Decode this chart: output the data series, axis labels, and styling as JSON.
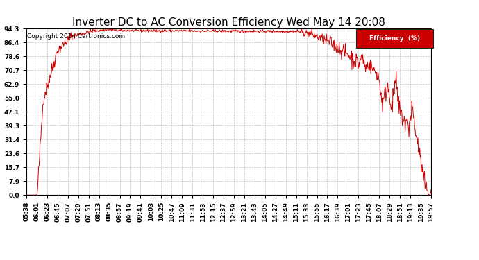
{
  "title": "Inverter DC to AC Conversion Efficiency Wed May 14 20:08",
  "copyright": "Copyright 2014 Cartronics.com",
  "legend_label": "Efficiency  (%)",
  "legend_bg": "#cc0000",
  "legend_text_color": "#ffffff",
  "line_color": "#cc0000",
  "bg_color": "#ffffff",
  "plot_bg_color": "#ffffff",
  "grid_color": "#aaaaaa",
  "yticks": [
    0.0,
    7.9,
    15.7,
    23.6,
    31.4,
    39.3,
    47.1,
    55.0,
    62.9,
    70.7,
    78.6,
    86.4,
    94.3
  ],
  "xtick_labels": [
    "05:38",
    "06:01",
    "06:23",
    "06:45",
    "07:07",
    "07:29",
    "07:51",
    "08:13",
    "08:35",
    "08:57",
    "09:19",
    "09:41",
    "10:03",
    "10:25",
    "10:47",
    "11:09",
    "11:31",
    "11:53",
    "12:15",
    "12:37",
    "12:59",
    "13:21",
    "13:43",
    "14:05",
    "14:27",
    "14:49",
    "15:11",
    "15:33",
    "15:55",
    "16:17",
    "16:39",
    "17:01",
    "17:23",
    "17:45",
    "18:07",
    "18:29",
    "18:51",
    "19:13",
    "19:35",
    "19:57"
  ],
  "title_fontsize": 11,
  "copyright_fontsize": 6.5,
  "tick_fontsize": 6.5,
  "ymax": 94.3,
  "ymin": 0.0
}
